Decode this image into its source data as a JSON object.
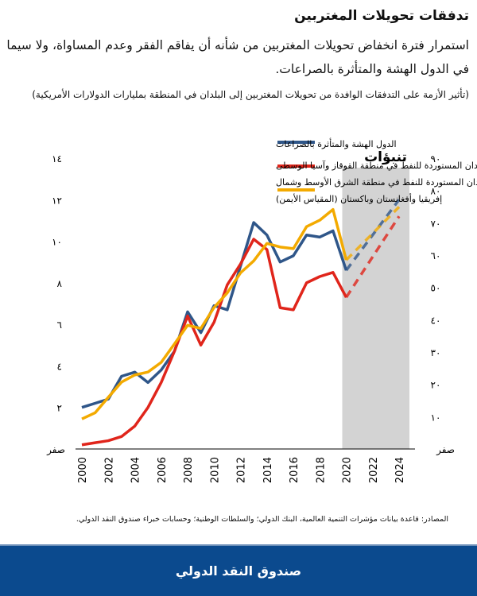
{
  "header": {
    "title": "تدفقات تحويلات المغتربين",
    "subtitle": "استمرار فترة انخفاض تحويلات المغتربين من شأنه أن يفاقم الفقر وعدم المساواة، ولا سيما في الدول الهشة والمتأثرة بالصراعات.",
    "units": "(تأثير الأزمة على التدفقات الوافدة من تحويلات المغتربين إلى البلدان في المنطقة بمليارات الدولارات الأمريكية)"
  },
  "chart_data": {
    "type": "line",
    "x": [
      2000,
      2001,
      2002,
      2003,
      2004,
      2005,
      2006,
      2007,
      2008,
      2009,
      2010,
      2011,
      2012,
      2013,
      2014,
      2015,
      2016,
      2017,
      2018,
      2019,
      2020,
      2024
    ],
    "forecast_label": "تنبؤات",
    "forecast_start": 2020,
    "x_ticks": [
      "2000",
      "2002",
      "2004",
      "2006",
      "2008",
      "2010",
      "2012",
      "2014",
      "2016",
      "2018",
      "2020",
      "2022",
      "2024"
    ],
    "left_axis": {
      "ylim": [
        0,
        14
      ],
      "ticks": [
        "صفر",
        "٢",
        "٤",
        "٦",
        "٨",
        "١٠",
        "١٢",
        "١٤"
      ]
    },
    "right_axis": {
      "ylim": [
        0,
        90
      ],
      "ticks": [
        "صفر",
        "١٠",
        "٢٠",
        "٣٠",
        "٤٠",
        "٥٠",
        "٦٠",
        "٧٠",
        "٨٠",
        "٩٠"
      ]
    },
    "grid": false,
    "legend_position": "top-center",
    "series": [
      {
        "name": "الدول الهشة والمتأثرة بالصراعات",
        "color": "#2f5689",
        "axis": "left",
        "values": [
          2.0,
          2.2,
          2.4,
          3.5,
          3.7,
          3.2,
          3.8,
          4.7,
          6.6,
          5.6,
          6.9,
          6.7,
          8.8,
          10.9,
          10.3,
          9.0,
          9.3,
          10.3,
          10.2,
          10.5,
          8.6,
          12.0
        ]
      },
      {
        "name": "البلدان المستوردة للنفط في منطقة القوقاز وآسيا الوسطى",
        "color": "#e0251b",
        "axis": "left",
        "values": [
          0.2,
          0.3,
          0.4,
          0.6,
          1.1,
          2.0,
          3.2,
          4.7,
          6.4,
          5.0,
          6.1,
          7.9,
          8.9,
          10.1,
          9.6,
          6.8,
          6.7,
          8.0,
          8.3,
          8.5,
          7.3,
          11.2
        ]
      },
      {
        "name": "البلدان المستوردة للنفط في منطقة الشرق الأوسط وشمال إفريقيا وأفغانستان وباكستان (المقياس الأيمن)",
        "color": "#f3aa00",
        "axis": "right",
        "values": [
          9.3,
          11.2,
          16,
          20.7,
          22.9,
          23.8,
          26.8,
          32.5,
          38.3,
          37.3,
          43.8,
          48.3,
          54.5,
          58.2,
          63.6,
          62.5,
          62,
          68.8,
          70.8,
          74.1,
          58.5,
          74.9
        ]
      }
    ]
  },
  "source": "المصادر: قاعدة بيانات مؤشرات التنمية العالمية، البنك الدولي؛ والسلطات الوطنية؛ وحسابات خبراء صندوق النقد الدولي.",
  "footer": {
    "label": "صندوق النقد الدولي"
  }
}
